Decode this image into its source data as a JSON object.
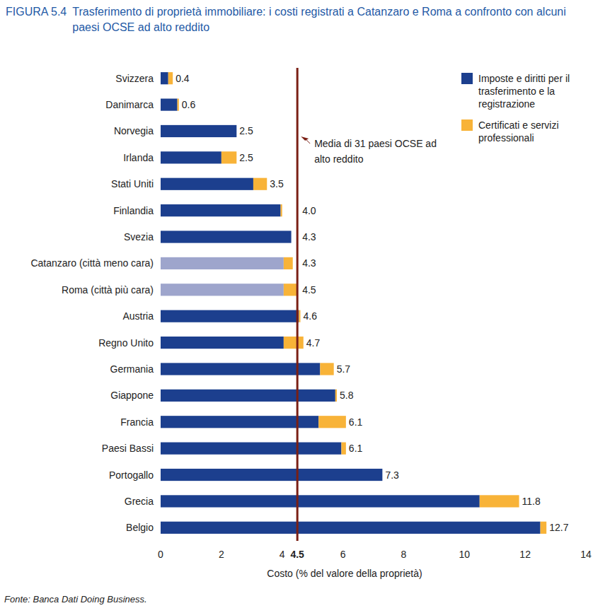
{
  "chart_data": {
    "type": "bar",
    "orientation": "horizontal",
    "stacked": true,
    "label": "FIGURA 5.4",
    "title": "Trasferimento di proprietà immobiliare: i costi registrati a Catanzaro e Roma a confronto con alcuni paesi OCSE ad alto reddito",
    "x_label": "Costo (% del valore della proprietà)",
    "source": "Fonte: Banca Dati Doing Business.",
    "categories": [
      "Svizzera",
      "Danimarca",
      "Norvegia",
      "Irlanda",
      "Stati Uniti",
      "Finlandia",
      "Svezia",
      "Catanzaro (città meno cara)",
      "Roma (città più cara)",
      "Austria",
      "Regno Unito",
      "Germania",
      "Giappone",
      "Francia",
      "Paesi Bassi",
      "Portogallo",
      "Grecia",
      "Belgio"
    ],
    "series": [
      {
        "name": "Imposte e diritti per il trasferimento e la registrazione",
        "color": "#1c3f8e",
        "colors": [
          "#1c3f8e",
          "#1c3f8e",
          "#1c3f8e",
          "#1c3f8e",
          "#1c3f8e",
          "#1c3f8e",
          "#1c3f8e",
          "#9ea5cc",
          "#9ea5cc",
          "#1c3f8e",
          "#1c3f8e",
          "#1c3f8e",
          "#1c3f8e",
          "#1c3f8e",
          "#1c3f8e",
          "#1c3f8e",
          "#1c3f8e",
          "#1c3f8e"
        ],
        "values": [
          0.25,
          0.55,
          2.5,
          2.0,
          3.05,
          3.95,
          4.3,
          4.05,
          4.05,
          4.55,
          4.05,
          5.25,
          5.75,
          5.2,
          5.95,
          7.3,
          10.5,
          12.5
        ]
      },
      {
        "name": "Certificati e servizi professionali",
        "color": "#f8b338",
        "values": [
          0.15,
          0.05,
          0,
          0.5,
          0.45,
          0.05,
          0,
          0.3,
          0.45,
          0.05,
          0.65,
          0.45,
          0.05,
          0.9,
          0.15,
          0,
          1.3,
          0.2
        ]
      }
    ],
    "totals": [
      0.4,
      0.6,
      2.5,
      2.5,
      3.5,
      4.0,
      4.3,
      4.3,
      4.5,
      4.6,
      4.7,
      5.7,
      5.8,
      6.1,
      6.1,
      7.3,
      11.8,
      12.7
    ],
    "total_labels": [
      "0.4",
      "0.6",
      "2.5",
      "2.5",
      "3.5",
      "4.0",
      "4.3",
      "4.3",
      "4.5",
      "4.6",
      "4.7",
      "5.7",
      "5.8",
      "6.1",
      "6.1",
      "7.3",
      "11.8",
      "12.7"
    ],
    "average": 4.5,
    "average_label": "Media di 31 paesi OCSE ad alto reddito",
    "xlim": [
      0,
      14
    ],
    "xticks": [
      0,
      2,
      4,
      4.5,
      6,
      8,
      10,
      12,
      14
    ],
    "grid": false,
    "legend": "top-right"
  }
}
